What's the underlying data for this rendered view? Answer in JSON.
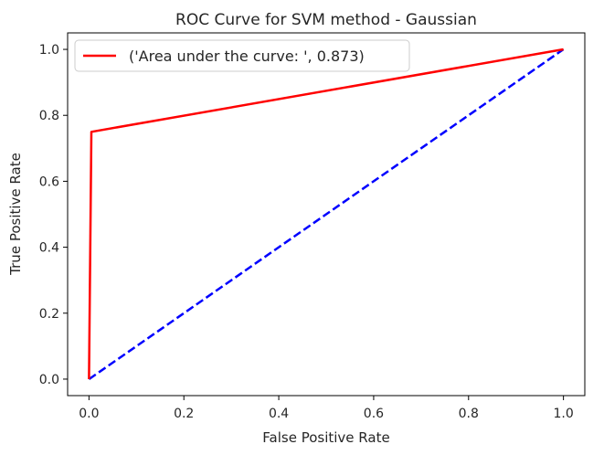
{
  "chart_data": {
    "type": "line",
    "title": "ROC Curve for SVM method - Gaussian",
    "xlabel": "False Positive Rate",
    "ylabel": "True Positive Rate",
    "xlim": [
      -0.045,
      1.045
    ],
    "ylim": [
      -0.05,
      1.05
    ],
    "xticks": [
      0.0,
      0.2,
      0.4,
      0.6,
      0.8,
      1.0
    ],
    "xtick_labels": [
      "0.0",
      "0.2",
      "0.4",
      "0.6",
      "0.8",
      "1.0"
    ],
    "yticks": [
      0.0,
      0.2,
      0.4,
      0.6,
      0.8,
      1.0
    ],
    "ytick_labels": [
      "0.0",
      "0.2",
      "0.4",
      "0.6",
      "0.8",
      "1.0"
    ],
    "grid": false,
    "legend_position": "top-left",
    "series": [
      {
        "name": "('Area under the curve: ', 0.873)",
        "style": "solid",
        "color": "#ff0000",
        "x": [
          0.0,
          0.005,
          1.0
        ],
        "y": [
          0.0,
          0.75,
          1.0
        ]
      },
      {
        "style": "dashed",
        "color": "#0000ff",
        "x": [
          0.0,
          1.0
        ],
        "y": [
          0.0,
          1.0
        ]
      }
    ]
  }
}
